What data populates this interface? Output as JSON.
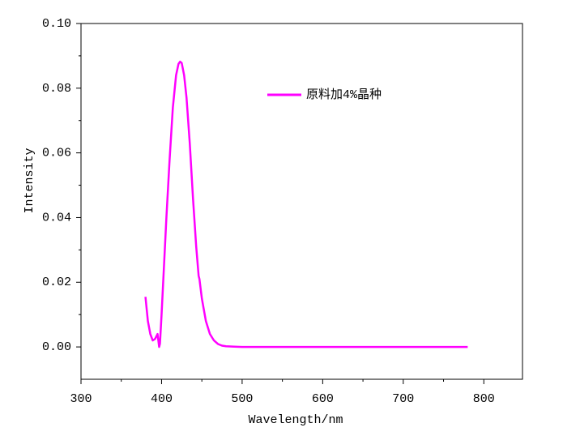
{
  "chart_data": {
    "type": "line",
    "x_label": "Wavelength/nm",
    "y_label": "Intensity",
    "x": [
      380,
      383,
      386,
      389,
      392,
      395,
      397,
      398,
      400,
      403,
      406,
      410,
      414,
      418,
      421,
      423,
      425,
      428,
      431,
      435,
      439,
      443,
      446,
      447,
      450,
      455,
      460,
      465,
      470,
      475,
      480,
      490,
      500,
      550,
      600,
      650,
      700,
      740,
      780
    ],
    "series": [
      {
        "name": "原料加4%晶种",
        "color": "#ff00ff",
        "values": [
          0.0155,
          0.008,
          0.004,
          0.002,
          0.0025,
          0.004,
          0.0,
          0.001,
          0.01,
          0.025,
          0.04,
          0.058,
          0.074,
          0.084,
          0.0875,
          0.0882,
          0.0878,
          0.084,
          0.077,
          0.063,
          0.046,
          0.031,
          0.022,
          0.021,
          0.015,
          0.008,
          0.004,
          0.002,
          0.0009,
          0.0004,
          0.0002,
          0.0001,
          0.0,
          0.0,
          0.0,
          0.0,
          0.0,
          0.0,
          0.0
        ]
      }
    ],
    "xlim": [
      300,
      848
    ],
    "ylim": [
      -0.01,
      0.1
    ],
    "xticks": [
      300,
      400,
      500,
      600,
      700,
      800
    ],
    "yticks": [
      {
        "value": 0,
        "label": "0.00"
      },
      0.02,
      0.04,
      0.06,
      0.08,
      {
        "value": 0.1,
        "label": "0.10"
      }
    ],
    "legend": "upper right"
  }
}
